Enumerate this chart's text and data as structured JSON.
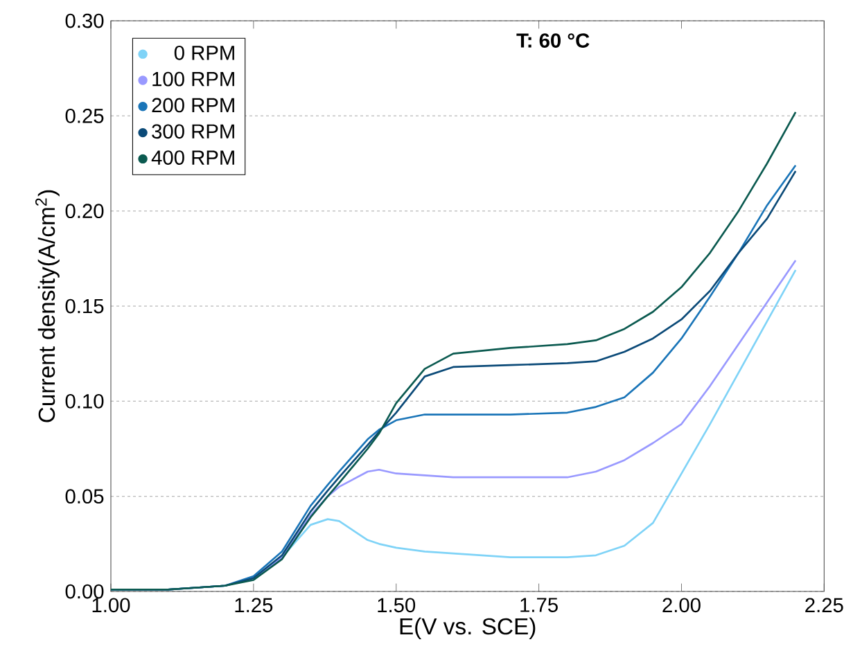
{
  "chart_data": {
    "type": "line",
    "title": "T: 60 °C",
    "xlabel": "E(V vs. SCE)",
    "ylabel": "Current density(A/cm$^{2}$)",
    "x": [
      1.0,
      1.1,
      1.2,
      1.25,
      1.3,
      1.35,
      1.38,
      1.4,
      1.45,
      1.47,
      1.5,
      1.55,
      1.6,
      1.7,
      1.8,
      1.85,
      1.9,
      1.95,
      2.0,
      2.05,
      2.1,
      2.15,
      2.2
    ],
    "series": [
      {
        "name": "0 RPM",
        "color": "#7fd3f7",
        "values": [
          0.001,
          0.001,
          0.003,
          0.007,
          0.018,
          0.035,
          0.038,
          0.037,
          0.027,
          0.025,
          0.023,
          0.021,
          0.02,
          0.018,
          0.018,
          0.019,
          0.024,
          0.036,
          0.062,
          0.088,
          0.115,
          0.142,
          0.169
        ]
      },
      {
        "name": "100 RPM",
        "color": "#9999ff",
        "values": [
          0.001,
          0.001,
          0.003,
          0.007,
          0.018,
          0.04,
          0.05,
          0.055,
          0.063,
          0.064,
          0.062,
          0.061,
          0.06,
          0.06,
          0.06,
          0.063,
          0.069,
          0.078,
          0.088,
          0.108,
          0.13,
          0.152,
          0.174
        ]
      },
      {
        "name": "200 RPM",
        "color": "#1a75b8",
        "values": [
          0.001,
          0.001,
          0.003,
          0.008,
          0.021,
          0.045,
          0.056,
          0.063,
          0.08,
          0.085,
          0.09,
          0.093,
          0.093,
          0.093,
          0.094,
          0.097,
          0.102,
          0.115,
          0.133,
          0.155,
          0.178,
          0.203,
          0.224
        ]
      },
      {
        "name": "300 RPM",
        "color": "#0b4a78",
        "values": [
          0.001,
          0.001,
          0.003,
          0.007,
          0.019,
          0.042,
          0.053,
          0.06,
          0.077,
          0.084,
          0.094,
          0.113,
          0.118,
          0.119,
          0.12,
          0.121,
          0.126,
          0.133,
          0.143,
          0.158,
          0.178,
          0.196,
          0.221
        ]
      },
      {
        "name": "400 RPM",
        "color": "#0b5a50",
        "values": [
          0.001,
          0.001,
          0.003,
          0.006,
          0.017,
          0.039,
          0.05,
          0.057,
          0.075,
          0.083,
          0.099,
          0.117,
          0.125,
          0.128,
          0.13,
          0.132,
          0.138,
          0.147,
          0.16,
          0.178,
          0.2,
          0.225,
          0.252
        ]
      }
    ],
    "xlim": [
      1.0,
      2.25
    ],
    "ylim": [
      0.0,
      0.3
    ],
    "xticks": [
      {
        "value": 1.0,
        "label": "1.00"
      },
      {
        "value": 1.25,
        "label": "1.25"
      },
      {
        "value": 1.5,
        "label": "1.50"
      },
      {
        "value": 1.75,
        "label": "1.75"
      },
      {
        "value": 2.0,
        "label": "2.00"
      },
      {
        "value": 2.25,
        "label": "2.25"
      }
    ],
    "yticks": [
      {
        "value": 0.0,
        "label": "0.00"
      },
      {
        "value": 0.05,
        "label": "0.05"
      },
      {
        "value": 0.1,
        "label": "0.10"
      },
      {
        "value": 0.15,
        "label": "0.15"
      },
      {
        "value": 0.2,
        "label": "0.20"
      },
      {
        "value": 0.25,
        "label": "0.25"
      },
      {
        "value": 0.3,
        "label": "0.30"
      }
    ],
    "grid": "y",
    "legend": "top left",
    "line_style": "solid"
  }
}
